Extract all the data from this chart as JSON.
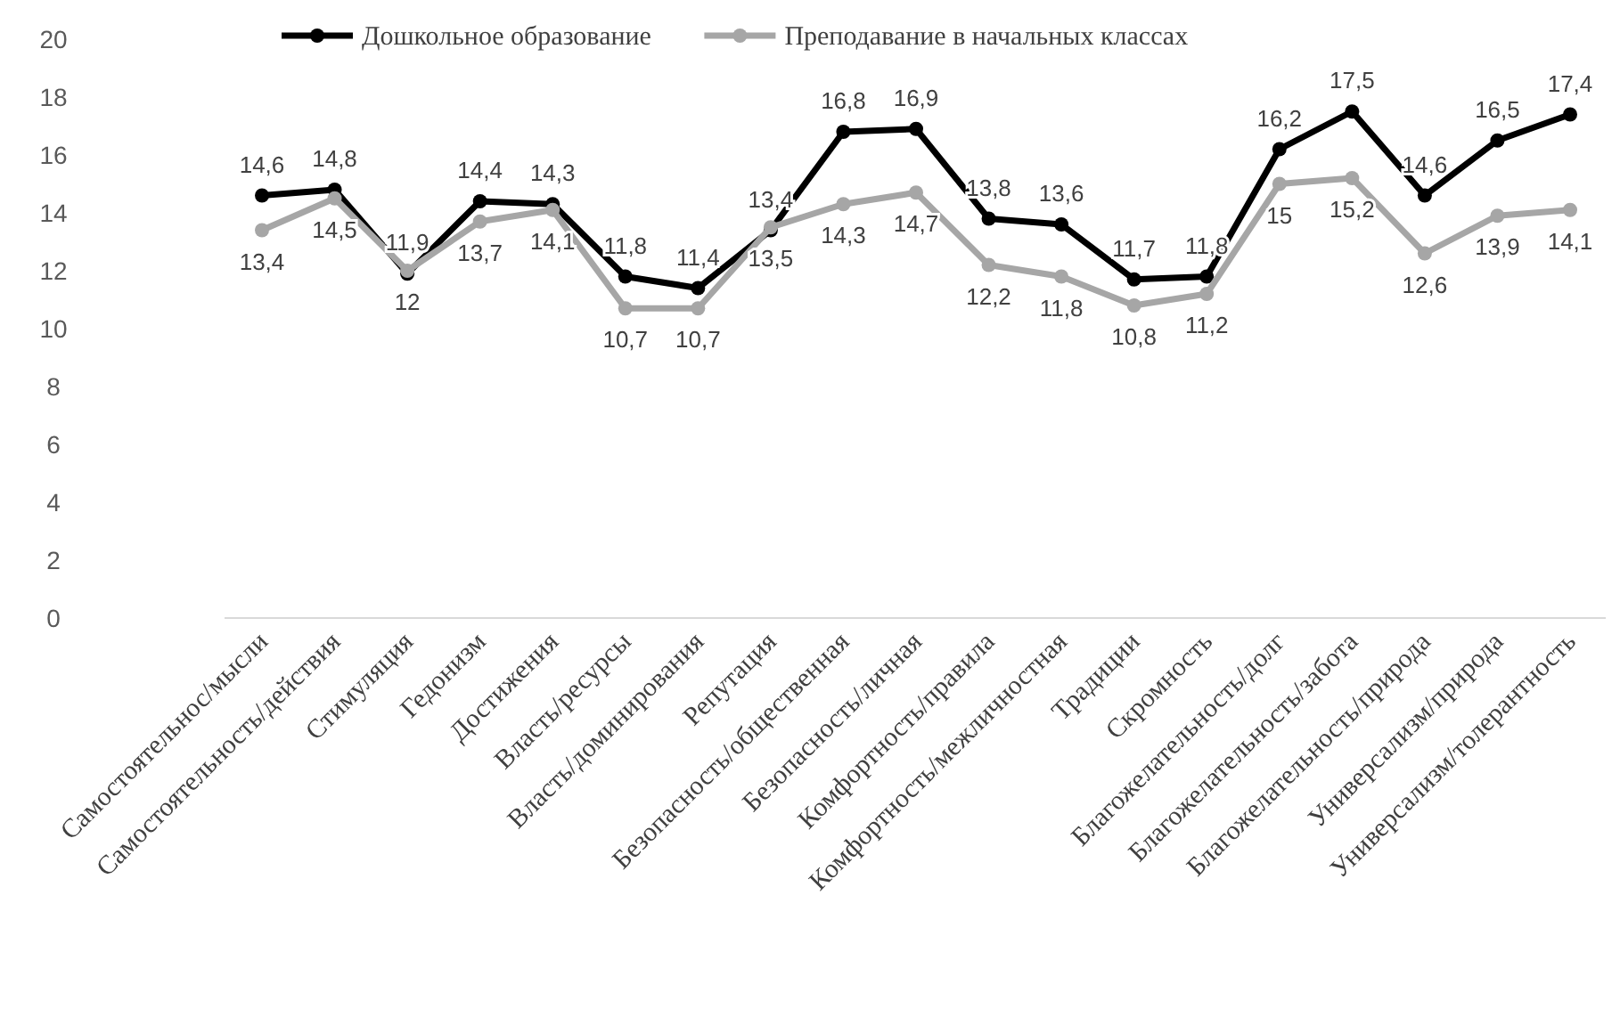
{
  "chart_data": {
    "type": "line",
    "categories": [
      "Самостоятельнос/мысли",
      "Самостоятельность/действия",
      "Стимуляция",
      "Гедонизм",
      "Достижения",
      "Власть/ресурсы",
      "Власть/доминирования",
      "Репутация",
      "Безопасность/общественная",
      "Безопасность/личная",
      "Комфортность/правила",
      "Комфортность/межличностная",
      "Традиции",
      "Скромность",
      "Благожелательность/долг",
      "Благожелательность/забота",
      "Благожелательность/природа",
      "Универсализм/природа",
      "Универсализм/толерантность"
    ],
    "series": [
      {
        "name": "Дошкольное образование",
        "color": "#000000",
        "values": [
          14.6,
          14.8,
          11.9,
          14.4,
          14.3,
          11.8,
          11.4,
          13.4,
          16.8,
          16.9,
          13.8,
          13.6,
          11.7,
          11.8,
          16.2,
          17.5,
          14.6,
          16.5,
          17.4
        ],
        "value_labels": [
          "14,6",
          "14,8",
          "11,9",
          "14,4",
          "14,3",
          "11,8",
          "11,4",
          "13,4",
          "16,8",
          "16,9",
          "13,8",
          "13,6",
          "11,7",
          "11,8",
          "16,2",
          "17,5",
          "14,6",
          "16,5",
          "17,4"
        ]
      },
      {
        "name": "Преподавание в начальных классах",
        "color": "#a6a6a6",
        "values": [
          13.4,
          14.5,
          12,
          13.7,
          14.1,
          10.7,
          10.7,
          13.5,
          14.3,
          14.7,
          12.2,
          11.8,
          10.8,
          11.2,
          15,
          15.2,
          12.6,
          13.9,
          14.1
        ],
        "value_labels": [
          "13,4",
          "14,5",
          "12",
          "13,7",
          "14,1",
          "10,7",
          "10,7",
          "13,5",
          "14,3",
          "14,7",
          "12,2",
          "11,8",
          "10,8",
          "11,2",
          "15",
          "15,2",
          "12,6",
          "13,9",
          "14,1"
        ]
      }
    ],
    "ylim": [
      0,
      20
    ],
    "yticks": [
      0,
      2,
      4,
      6,
      8,
      10,
      12,
      14,
      16,
      18,
      20
    ],
    "grid": false,
    "legend": "top",
    "marker": "circle",
    "line_style": "solid"
  }
}
